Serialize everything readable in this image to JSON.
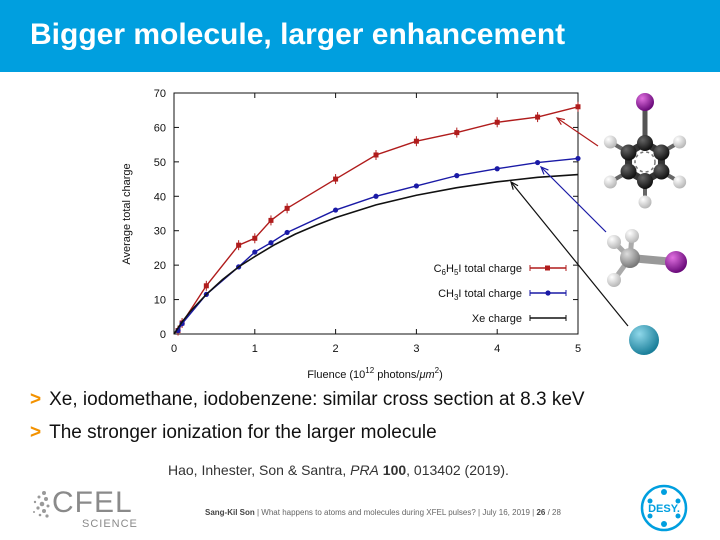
{
  "slide": {
    "title": "Bigger molecule, larger enhancement"
  },
  "chart_data": {
    "type": "line",
    "xlabel": "Fluence (10",
    "xlabel_sup": "12",
    "xlabel_tail": " photons/",
    "xlabel_unit": "μm",
    "xlabel_unit_sup": "2",
    "xlabel_close": ")",
    "ylabel": "Average total charge",
    "xlim": [
      0,
      5
    ],
    "ylim": [
      0,
      70
    ],
    "xticks": [
      0,
      1,
      2,
      3,
      4,
      5
    ],
    "yticks": [
      0,
      10,
      20,
      30,
      40,
      50,
      60,
      70
    ],
    "legend_position": "bottom-right",
    "series": [
      {
        "legend_parts": [
          "C",
          "6",
          "H",
          "5",
          "I total charge"
        ],
        "color": "#b01c1c",
        "marker": "square",
        "x": [
          0.05,
          0.1,
          0.4,
          0.8,
          1.0,
          1.2,
          1.4,
          2.0,
          2.5,
          3.0,
          3.5,
          4.0,
          4.5,
          5.0
        ],
        "y": [
          1.0,
          3.2,
          14.0,
          25.8,
          27.8,
          33.0,
          36.5,
          45.0,
          52.0,
          56.0,
          58.5,
          61.5,
          63.0,
          66.0
        ]
      },
      {
        "legend_parts": [
          "CH",
          "3",
          "I total charge"
        ],
        "color": "#1a1aa6",
        "marker": "circle",
        "x": [
          0.05,
          0.1,
          0.4,
          0.8,
          1.0,
          1.2,
          1.4,
          2.0,
          2.5,
          3.0,
          3.5,
          4.0,
          4.5,
          5.0
        ],
        "y": [
          1.0,
          3.0,
          11.5,
          19.5,
          23.8,
          26.5,
          29.5,
          36.0,
          40.0,
          43.0,
          46.0,
          48.0,
          49.8,
          51.0
        ]
      },
      {
        "legend_parts": [
          "Xe charge"
        ],
        "color": "#111111",
        "marker": "none",
        "x": [
          0,
          0.1,
          0.2,
          0.4,
          0.6,
          0.8,
          1.0,
          1.25,
          1.5,
          1.75,
          2.0,
          2.5,
          3.0,
          3.5,
          4.0,
          4.5,
          5.0
        ],
        "y": [
          0,
          3.5,
          6.5,
          11.5,
          15.8,
          19.5,
          22.5,
          26.0,
          29.0,
          31.5,
          33.8,
          37.5,
          40.3,
          42.5,
          44.2,
          45.5,
          46.3
        ]
      }
    ]
  },
  "molecules": [
    {
      "name": "iodobenzene-molecule",
      "arrow_color": "#b01c1c"
    },
    {
      "name": "iodomethane-molecule",
      "arrow_color": "#1a1aa6"
    },
    {
      "name": "xenon-atom",
      "arrow_color": "#111111"
    }
  ],
  "bullets": [
    "Xe, iodomethane, iodobenzene: similar cross section at 8.3 keV",
    "The stronger ionization for the larger molecule"
  ],
  "bullet_marker": ">",
  "citation": {
    "authors": "Hao, Inhester, Son & Santra, ",
    "journal": "PRA",
    "volume": "100",
    "rest": ", 013402 (2019)."
  },
  "footer": {
    "speaker": "Sang-Kil Son",
    "talk": "  |  What happens to atoms and molecules during XFEL pulses?  |  July 16, 2019  |  ",
    "page": "26",
    "total": " / 28"
  },
  "logos": {
    "cfel_word": "CFEL",
    "cfel_sub": "SCIENCE",
    "desy_word": "DESY."
  },
  "colors": {
    "title_bar": "#009fdf",
    "bullet_marker": "#f39200"
  }
}
